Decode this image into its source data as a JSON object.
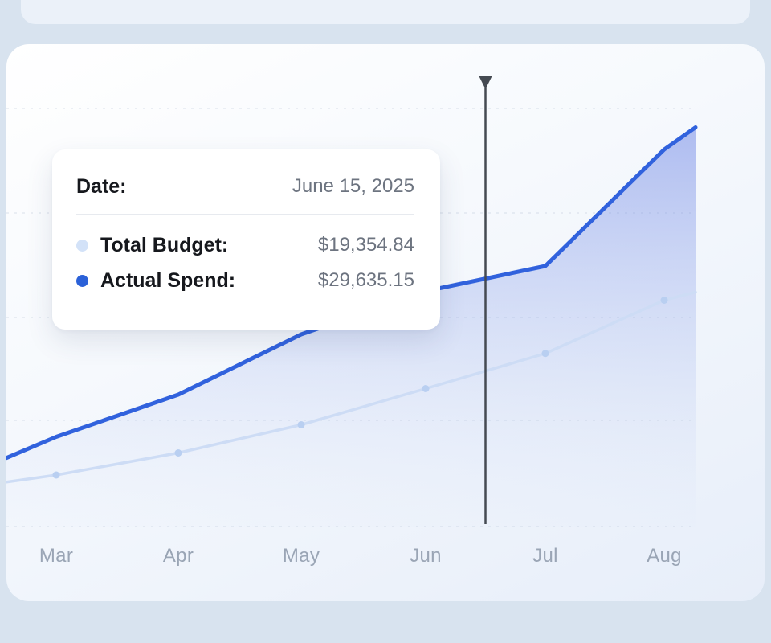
{
  "chart_data": {
    "type": "area",
    "title": "",
    "xlabel": "",
    "ylabel": "",
    "categories": [
      "Mar",
      "Apr",
      "May",
      "Jun",
      "Jul",
      "Aug"
    ],
    "series": [
      {
        "name": "Total Budget",
        "color": "#cddcf5",
        "marker_color": "#b9cff1",
        "fill": false,
        "markers": true,
        "values": [
          10400,
          12600,
          15400,
          19000,
          22500,
          27800
        ],
        "edge_left_value": 9700,
        "edge_right_value": 28600
      },
      {
        "name": "Actual Spend",
        "color": "#3162dd",
        "fill": true,
        "markers": false,
        "values": [
          14200,
          18400,
          24400,
          28700,
          31200,
          42800
        ],
        "edge_left_value": 12100,
        "edge_right_value": 45000
      }
    ],
    "ylim": [
      5000,
      50000
    ],
    "grid": "horizontal-dashed",
    "legend_position": "tooltip",
    "cursor": {
      "x_index": 3.5,
      "date": "June 15, 2025",
      "values": {
        "Total Budget": 19354.84,
        "Actual Spend": 29635.15
      }
    }
  },
  "tooltip": {
    "date_label": "Date:",
    "date_value": "June 15, 2025",
    "rows": [
      {
        "label": "Total Budget:",
        "value": "$19,354.84",
        "dot_color": "#d3e2f8"
      },
      {
        "label": "Actual Spend:",
        "value": "$29,635.15",
        "dot_color": "#2b61d8"
      }
    ]
  },
  "colors": {
    "page_bg": "#d8e3ef",
    "top_strip": "#ebf1f9",
    "cursor": "#454a52",
    "axis_label": "#9aa5b5",
    "grid": "#b9c6d8",
    "area_fill_top": "#5d77e2",
    "area_fill_bottom": "#cdd9f5"
  }
}
